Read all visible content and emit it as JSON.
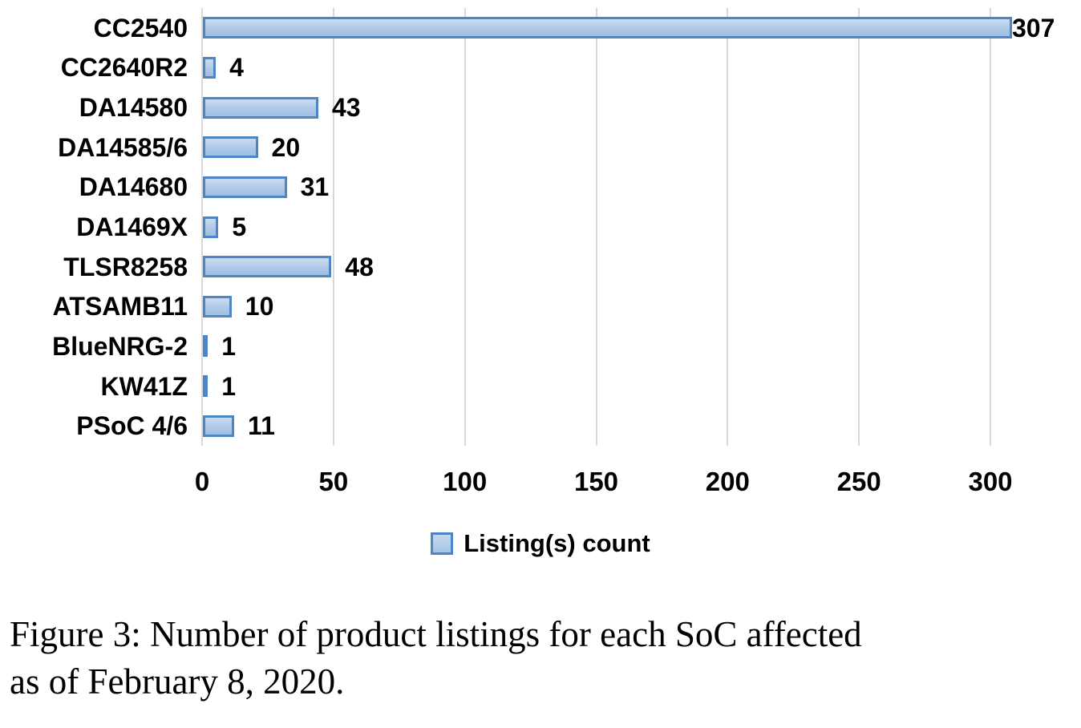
{
  "chart_data": {
    "type": "bar",
    "orientation": "horizontal",
    "categories": [
      "CC2540",
      "CC2640R2",
      "DA14580",
      "DA14585/6",
      "DA14680",
      "DA1469X",
      "TLSR8258",
      "ATSAMB11",
      "BlueNRG-2",
      "KW41Z",
      "PSoC 4/6"
    ],
    "values": [
      307,
      4,
      43,
      20,
      31,
      5,
      48,
      10,
      1,
      1,
      11
    ],
    "series_name": "Listing(s) count",
    "x_ticks": [
      0,
      50,
      100,
      150,
      200,
      250,
      300
    ],
    "xlim": [
      0,
      335
    ],
    "grid": "vertical-gridlines",
    "legend_position": "bottom-center",
    "data_labels": "end-of-bar",
    "colors": {
      "bar_fill_light": "#cadcf0",
      "bar_fill_dark": "#9fc0e4",
      "bar_border": "#4e86c5",
      "gridline": "#d9d9d9",
      "text": "#000000"
    }
  },
  "caption": {
    "lines": [
      "Figure 3: Number of product listings for each SoC affected",
      "as of February 8, 2020."
    ]
  }
}
